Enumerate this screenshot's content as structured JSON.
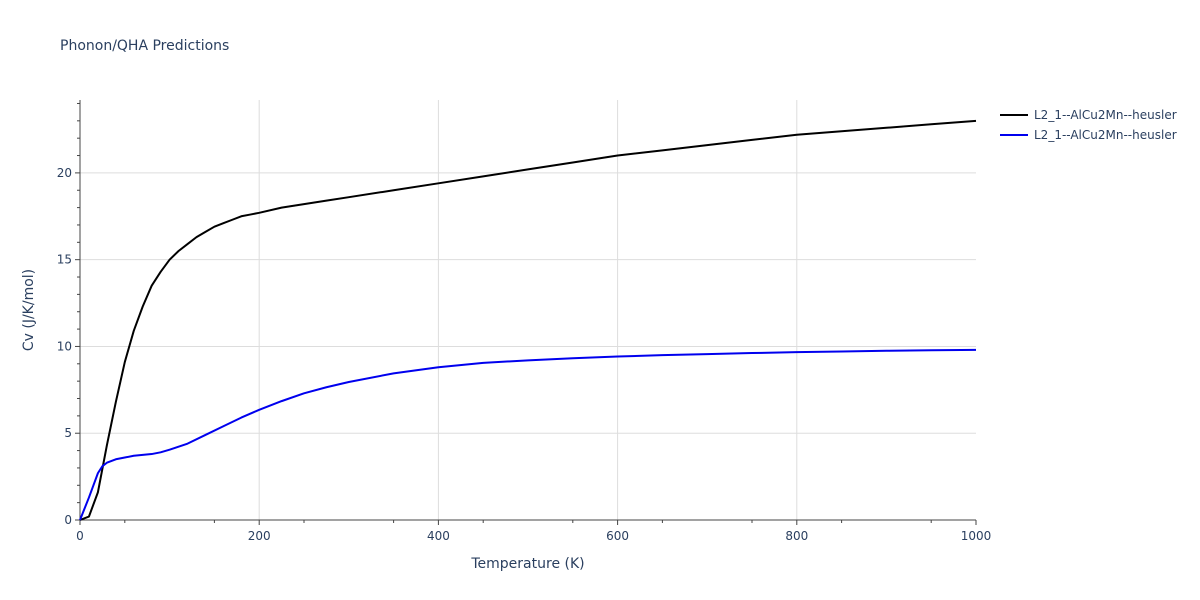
{
  "chart_data": {
    "type": "line",
    "title": "Phonon/QHA Predictions",
    "xlabel": "Temperature (K)",
    "ylabel": "Cv (J/K/mol)",
    "xlim": [
      0,
      1000
    ],
    "ylim": [
      0,
      24.2
    ],
    "xticks": [
      0,
      200,
      400,
      600,
      800,
      1000
    ],
    "yticks": [
      0,
      5,
      10,
      15,
      20
    ],
    "grid": true,
    "legend_position": "top-right",
    "series": [
      {
        "name": "L2_1--AlCu2Mn--heusler",
        "color": "#000000",
        "x": [
          0,
          10,
          20,
          30,
          40,
          50,
          60,
          70,
          80,
          90,
          100,
          110,
          120,
          130,
          140,
          150,
          160,
          170,
          180,
          190,
          200,
          225,
          250,
          275,
          300,
          350,
          400,
          450,
          500,
          550,
          600,
          650,
          700,
          750,
          800,
          850,
          900,
          950,
          1000
        ],
        "y": [
          0,
          0.2,
          1.6,
          4.3,
          6.8,
          9.1,
          10.9,
          12.3,
          13.5,
          14.3,
          15.0,
          15.5,
          15.9,
          16.3,
          16.6,
          16.9,
          17.1,
          17.3,
          17.5,
          17.6,
          17.7,
          18.0,
          18.2,
          18.4,
          18.6,
          19.0,
          19.4,
          19.8,
          20.2,
          20.6,
          21.0,
          21.3,
          21.6,
          21.9,
          22.2,
          22.4,
          22.6,
          22.8,
          23.0
        ]
      },
      {
        "name": "L2_1--AlCu2Mn--heusler",
        "color": "#0000ee",
        "x": [
          0,
          10,
          20,
          25,
          30,
          40,
          50,
          60,
          70,
          80,
          90,
          100,
          120,
          140,
          160,
          180,
          200,
          225,
          250,
          275,
          300,
          350,
          400,
          450,
          500,
          550,
          600,
          650,
          700,
          750,
          800,
          850,
          900,
          950,
          1000
        ],
        "y": [
          0,
          1.3,
          2.7,
          3.1,
          3.3,
          3.5,
          3.6,
          3.7,
          3.75,
          3.8,
          3.9,
          4.05,
          4.4,
          4.9,
          5.4,
          5.9,
          6.35,
          6.85,
          7.3,
          7.65,
          7.95,
          8.45,
          8.8,
          9.05,
          9.2,
          9.32,
          9.42,
          9.5,
          9.56,
          9.62,
          9.67,
          9.71,
          9.75,
          9.78,
          9.8
        ]
      }
    ]
  }
}
